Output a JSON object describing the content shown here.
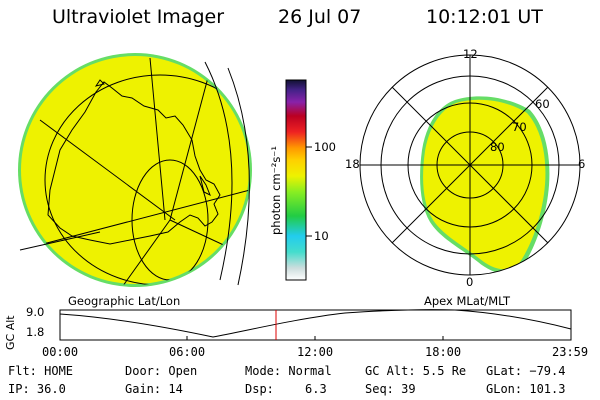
{
  "header": {
    "instrument": "Ultraviolet Imager",
    "date": "26 Jul 07",
    "time": "10:12:01 UT"
  },
  "colorbar": {
    "unit": "photon cm⁻²s⁻¹",
    "ticks": [
      "100",
      "10"
    ]
  },
  "left_panel": {
    "caption": "Geographic Lat/Lon"
  },
  "right_panel": {
    "caption": "Apex MLat/MLT",
    "mlt_labels": [
      "12",
      "18",
      "6",
      "0"
    ],
    "lat_labels": [
      "60",
      "70",
      "80"
    ]
  },
  "altitude_plot": {
    "ylabel": "GC Alt",
    "yticks": [
      "9.0",
      "1.8"
    ],
    "xticks": [
      "00:00",
      "06:00",
      "12:00",
      "18:00",
      "23:59"
    ]
  },
  "status": {
    "flt": "Flt: HOME",
    "ip": "IP: 36.0",
    "door": "Door: Open",
    "gain": "Gain: 14",
    "mode": "Mode: Normal",
    "dsp_label": "Dsp:",
    "dsp_value": "6.3",
    "gc_alt": "GC Alt: 5.5 Re",
    "seq": "Seq: 39",
    "glat": "GLat: −79.4",
    "glon": "GLon: 101.3"
  },
  "colors": {
    "fill": "#eef200",
    "rim": "#66dd66",
    "marker": "#dd0000"
  }
}
